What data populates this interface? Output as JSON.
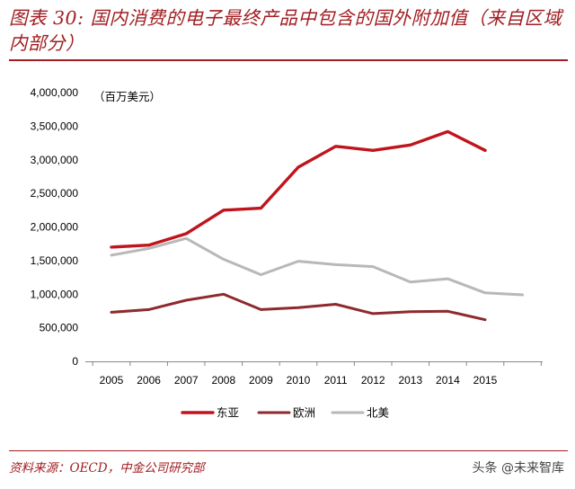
{
  "figure": {
    "title": "图表 30: 国内消费的电子最终产品中包含的国外附加值（来自区域内部分）",
    "source": "资料来源：OECD，中金公司研究部",
    "watermark": "头条 @未来智库"
  },
  "chart_data": {
    "type": "line",
    "title": "国内消费的电子最终产品中包含的国外附加值（来自区域内部分）",
    "unit_label": "（百万美元）",
    "xlabel": "",
    "ylabel": "",
    "categories": [
      "2005",
      "2006",
      "2007",
      "2008",
      "2009",
      "2010",
      "2011",
      "2012",
      "2013",
      "2014",
      "2015",
      ""
    ],
    "ylim": [
      0,
      4000000
    ],
    "yticks": [
      0,
      500000,
      1000000,
      1500000,
      2000000,
      2500000,
      3000000,
      3500000,
      4000000
    ],
    "ytick_labels": [
      "0",
      "500,000",
      "1,000,000",
      "1,500,000",
      "2,000,000",
      "2,500,000",
      "3,000,000",
      "3,500,000",
      "4,000,000"
    ],
    "legend_position": "bottom",
    "series": [
      {
        "name": "东亚",
        "color": "#c0141c",
        "width": 3.4,
        "values": [
          1700000,
          1730000,
          1900000,
          2250000,
          2280000,
          2890000,
          3200000,
          3140000,
          3220000,
          3420000,
          3140000,
          null
        ]
      },
      {
        "name": "欧洲",
        "color": "#8e2a2e",
        "width": 3.0,
        "values": [
          730000,
          770000,
          910000,
          1000000,
          770000,
          800000,
          850000,
          710000,
          740000,
          745000,
          620000,
          null
        ]
      },
      {
        "name": "北美",
        "color": "#b8b8b8",
        "width": 3.0,
        "values": [
          1580000,
          1680000,
          1830000,
          1520000,
          1290000,
          1490000,
          1440000,
          1410000,
          1180000,
          1230000,
          1020000,
          990000
        ]
      }
    ]
  }
}
